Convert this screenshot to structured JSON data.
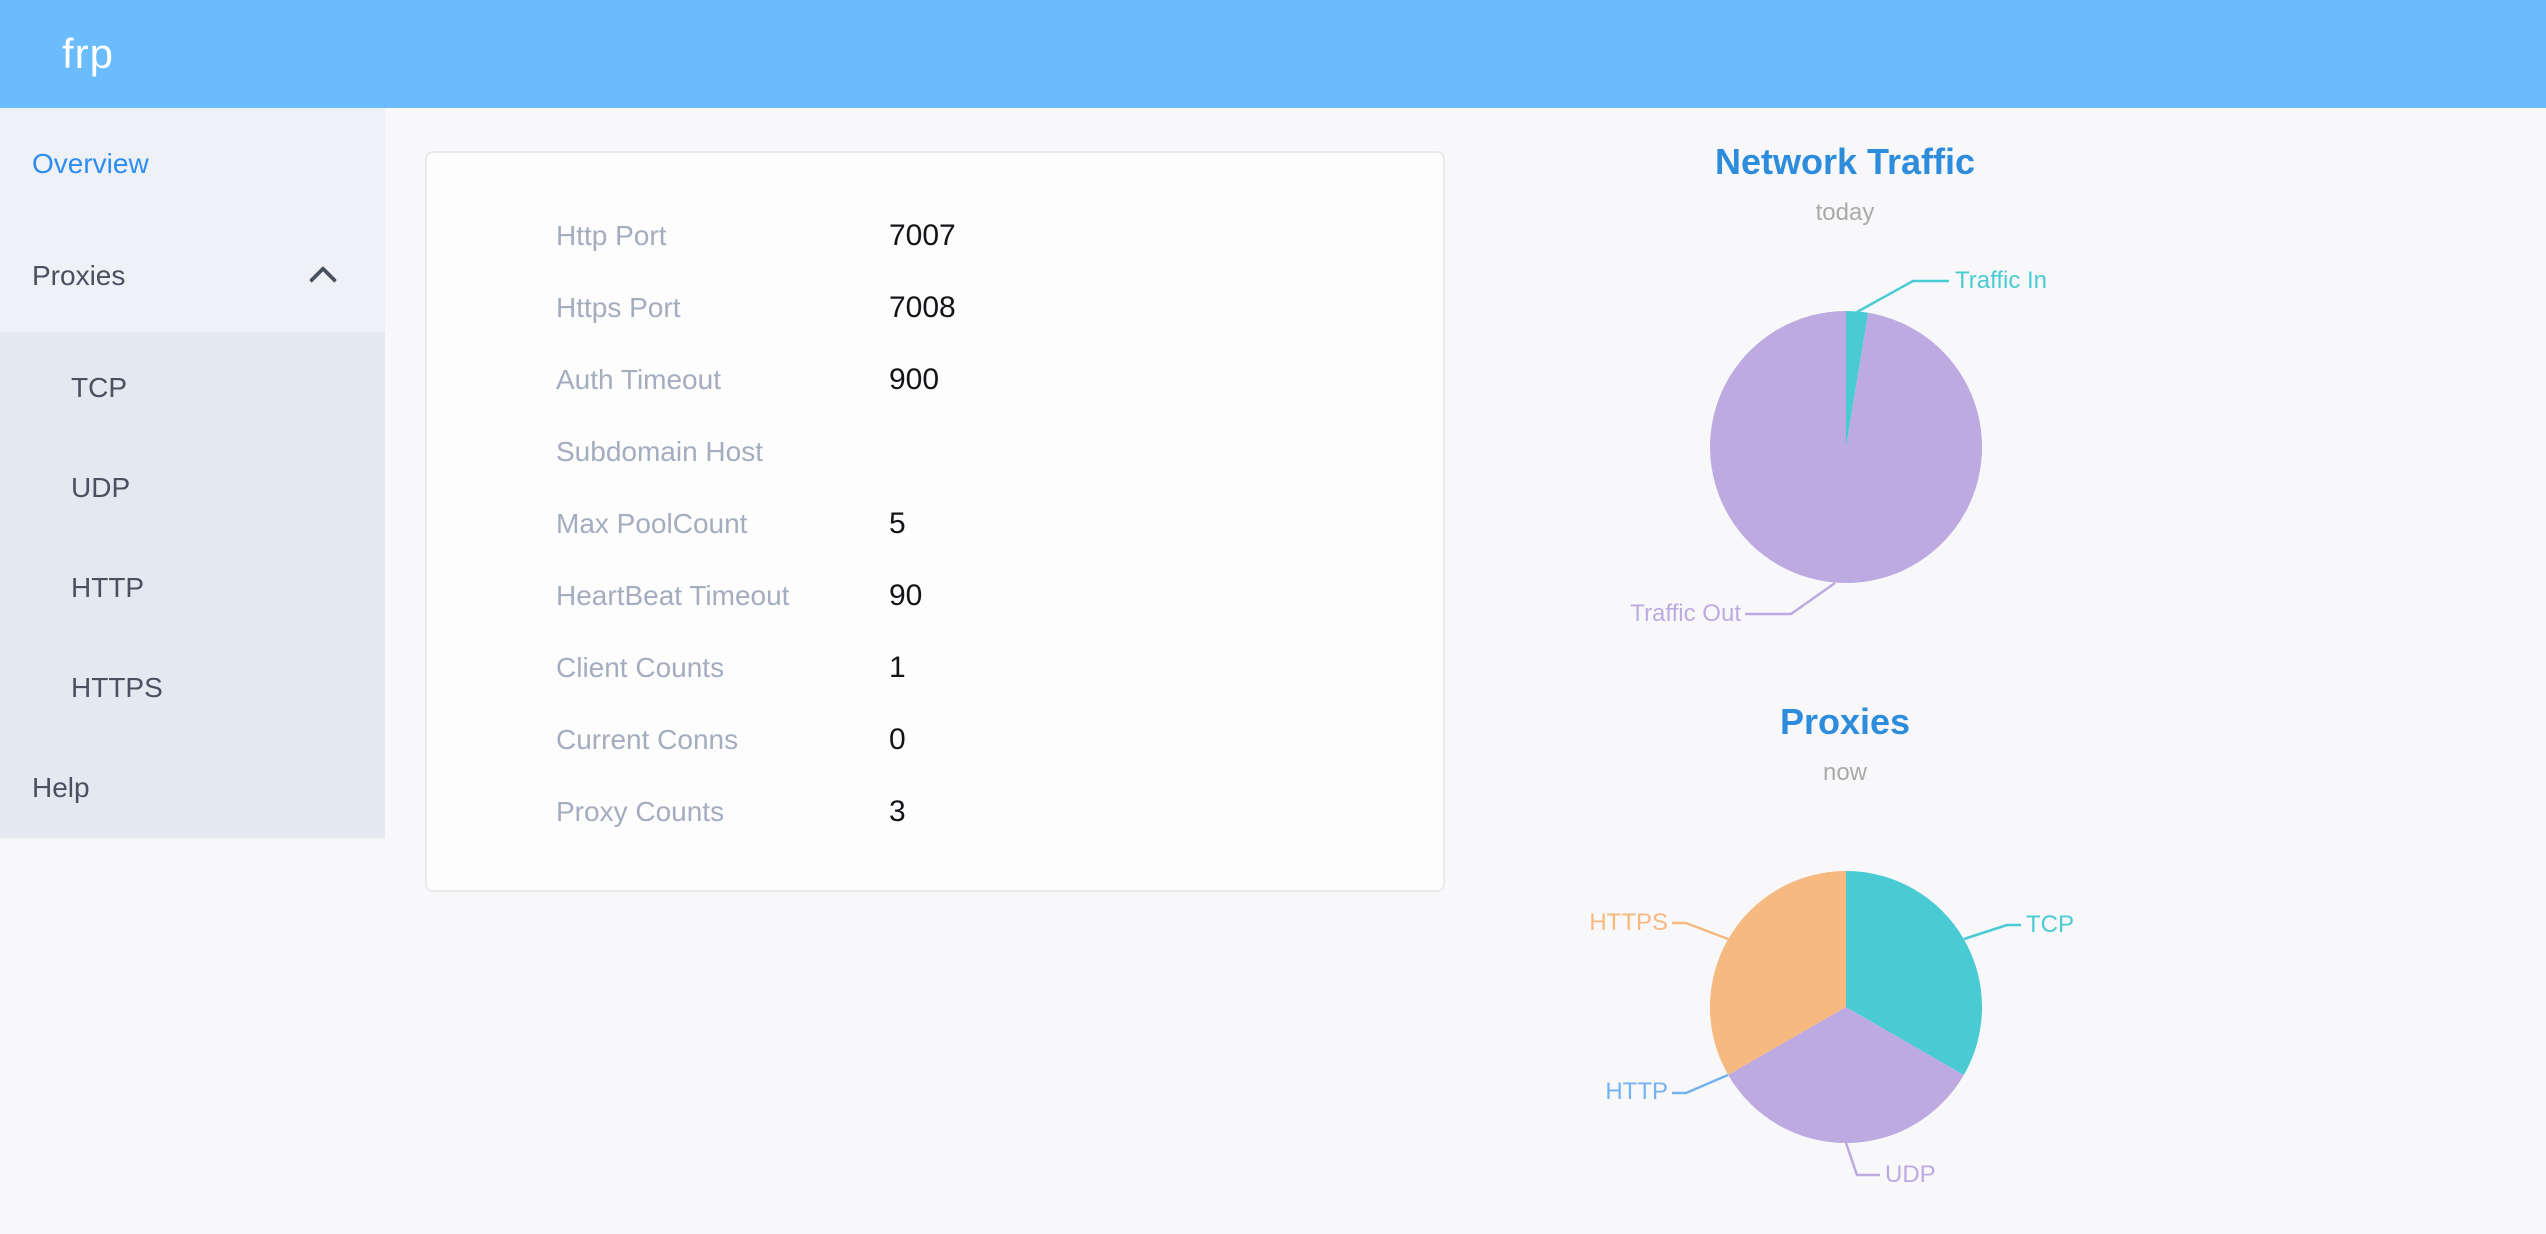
{
  "header": {
    "logo": "frp"
  },
  "sidebar": {
    "overview_label": "Overview",
    "proxies_label": "Proxies",
    "proxies_expanded": true,
    "proxy_types": [
      "TCP",
      "UDP",
      "HTTP",
      "HTTPS"
    ],
    "help_label": "Help"
  },
  "config_card": {
    "rows": [
      {
        "label": "Http Port",
        "value": "7007"
      },
      {
        "label": "Https Port",
        "value": "7008"
      },
      {
        "label": "Auth Timeout",
        "value": "900"
      },
      {
        "label": "Subdomain Host",
        "value": ""
      },
      {
        "label": "Max PoolCount",
        "value": "5"
      },
      {
        "label": "HeartBeat Timeout",
        "value": "90"
      },
      {
        "label": "Client Counts",
        "value": "1"
      },
      {
        "label": "Current Conns",
        "value": "0"
      },
      {
        "label": "Proxy Counts",
        "value": "3"
      }
    ]
  },
  "chart_data": [
    {
      "type": "pie",
      "title": "Network Traffic",
      "subtitle": "today",
      "legend_position": "callout-labels",
      "unit": "percent-of-pie (estimated from slice angles; absolute bytes not shown)",
      "slices": [
        {
          "label": "Traffic In",
          "value": 2.6,
          "color": "#4acbd3"
        },
        {
          "label": "Traffic Out",
          "value": 97.4,
          "color": "#bcaae1"
        }
      ]
    },
    {
      "type": "pie",
      "title": "Proxies",
      "subtitle": "now",
      "legend_position": "callout-labels",
      "unit": "proxy count",
      "slices": [
        {
          "label": "TCP",
          "value": 1,
          "color": "#4acbd3"
        },
        {
          "label": "UDP",
          "value": 1,
          "color": "#bcaae1"
        },
        {
          "label": "HTTP",
          "value": 0,
          "color": "#74b2f0"
        },
        {
          "label": "HTTPS",
          "value": 1,
          "color": "#f6b980"
        }
      ]
    }
  ],
  "theme": {
    "header_bg": "#6abcfc",
    "logo_color": "#ffffff",
    "primary": "#2d8cf0",
    "sidebar_bg": "#eef1f6",
    "submenu_bg": "#e4e8f1",
    "menu_text": "#495060",
    "page_bg": "#f8f8fa",
    "card_bg": "#fdfdfe",
    "card_border": "#e8eaec",
    "label_muted": "#a3adbe",
    "value_text": "#121417",
    "chart_title": "#2d8cdb",
    "chart_subtitle": "#aaaaaa"
  }
}
